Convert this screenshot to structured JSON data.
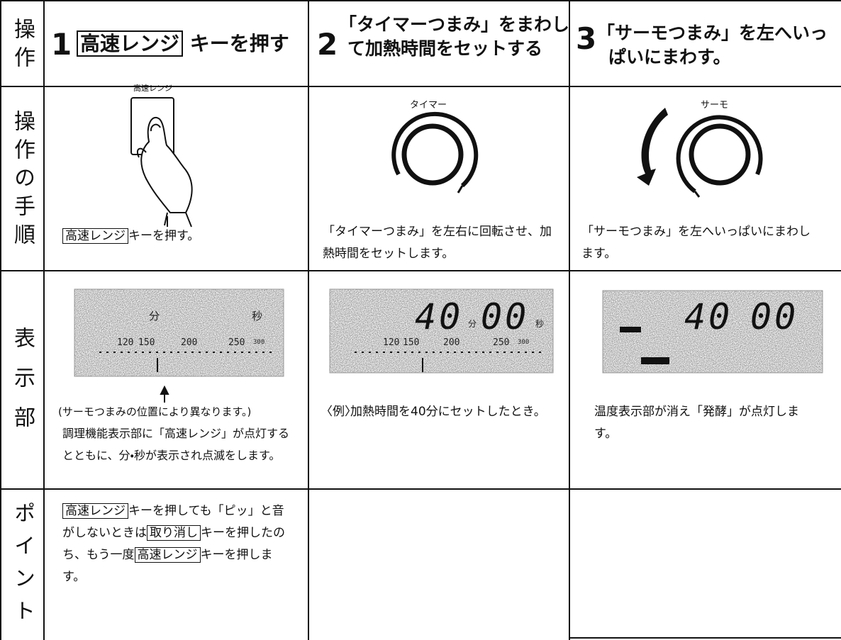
{
  "header": {
    "row_label": "操作",
    "steps": [
      {
        "number": "1",
        "key": "高速レンジ",
        "text": "キーを押す"
      },
      {
        "number": "2",
        "lines": [
          "「タイマーつまみ」をまわし",
          "て加熱時間をセットする"
        ]
      },
      {
        "number": "3",
        "lines": [
          "「サーモつまみ」を左へいっ",
          "ぱいにまわす。"
        ]
      }
    ]
  },
  "procedure": {
    "row_label": "操作の手順",
    "cells": [
      {
        "illustration_label": "高速レンジ",
        "key": "高速レンジ",
        "text": "キーを押す。"
      },
      {
        "illustration_label": "タイマー",
        "text": "「タイマーつまみ」を左右に回転させ、加熱時間をセットします。"
      },
      {
        "illustration_label": "サーモ",
        "text": "「サーモつまみ」を左へいっぱいにまわします。"
      }
    ]
  },
  "display": {
    "row_label": "表示部",
    "cells": [
      {
        "lcd": {
          "minute": "分",
          "second": "秒",
          "scale": [
            "120",
            "150",
            "200",
            "250",
            "300"
          ]
        },
        "note": "(サーモつまみの位置により異なります。)",
        "text": "調理機能表示部に「高速レンジ」が点灯するとともに、分・秒が表示され点滅をします。"
      },
      {
        "lcd": {
          "minutes": "40",
          "minute": "分",
          "seconds": "00",
          "second": "秒",
          "scale": [
            "120",
            "150",
            "200",
            "250",
            "300"
          ]
        },
        "prefix": "〈例〉",
        "text": "加熱時間を40分にセットしたとき。"
      },
      {
        "lcd": {
          "minutes": "40",
          "seconds": "00"
        },
        "text": "温度表示部が消え「発酵」が点灯します。"
      }
    ]
  },
  "point": {
    "row_label": "ポイント",
    "parts": [
      {
        "key": "高速レンジ"
      },
      {
        "text": "キーを押しても「ピッ」と音がしないときは"
      },
      {
        "key": "取り消し"
      },
      {
        "text": "キーを押したのち、もう一度"
      },
      {
        "key": "高速レンジ"
      },
      {
        "text": "キーを押します。"
      }
    ]
  }
}
